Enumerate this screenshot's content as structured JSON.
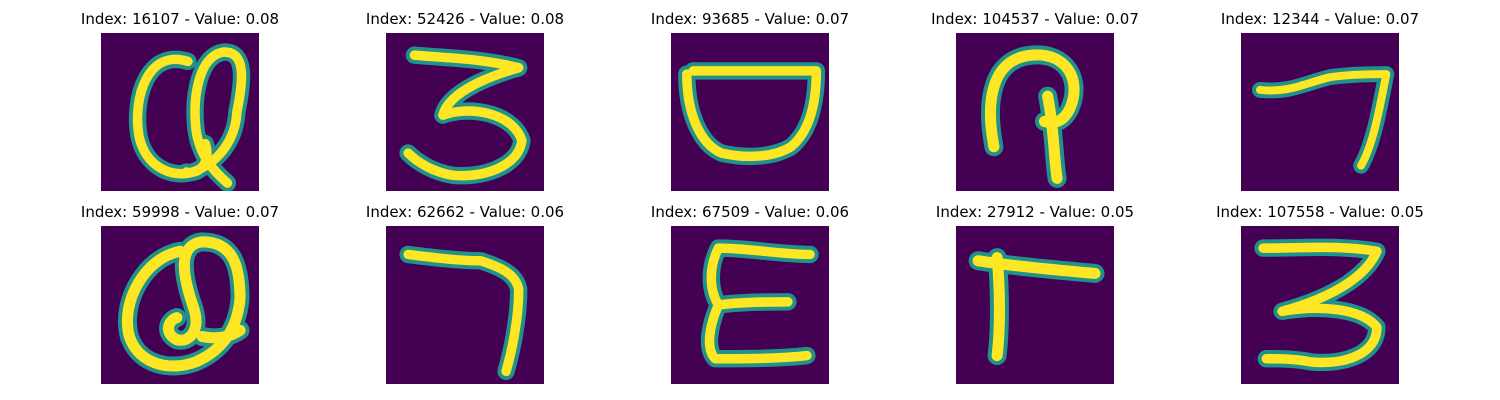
{
  "colors": {
    "background": "#440154",
    "stroke_mid": "#21918c",
    "stroke_glow": "#5ec962",
    "stroke_core": "#fde725"
  },
  "panels": [
    {
      "title": "Index: 16107 - Value: 0.08",
      "glyph": "Q-like"
    },
    {
      "title": "Index: 52426 - Value: 0.08",
      "glyph": "3"
    },
    {
      "title": "Index: 93685 - Value: 0.07",
      "glyph": "bowl"
    },
    {
      "title": "Index: 104537 - Value: 0.07",
      "glyph": "P-like"
    },
    {
      "title": "Index: 12344 - Value: 0.07",
      "glyph": "7"
    },
    {
      "title": "Index: 59998 - Value: 0.07",
      "glyph": "Q-like"
    },
    {
      "title": "Index: 62662 - Value: 0.06",
      "glyph": "7"
    },
    {
      "title": "Index: 67509 - Value: 0.06",
      "glyph": "E"
    },
    {
      "title": "Index: 27912 - Value: 0.05",
      "glyph": "Γ"
    },
    {
      "title": "Index: 107558 - Value: 0.05",
      "glyph": "3"
    }
  ]
}
